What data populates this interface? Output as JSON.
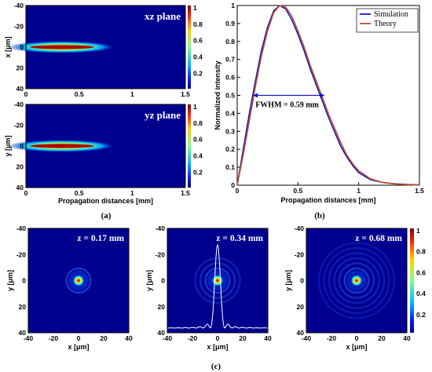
{
  "captions": {
    "a": "(a)",
    "b": "(b)",
    "c": "(c)"
  },
  "colorbar_ticks": [
    "1",
    "0.8",
    "0.6",
    "0.4",
    "0.2"
  ],
  "chart_data": [
    {
      "id": "xz",
      "type": "heatmap",
      "title": "xz plane",
      "xlabel": "",
      "ylabel": "x [μm]",
      "xlim": [
        0,
        1.5
      ],
      "ylim": [
        -40,
        40
      ],
      "xticks": [
        "0",
        "0.5",
        "1",
        "1.5"
      ],
      "yticks": [
        "-40",
        "-20",
        "0",
        "20",
        "40"
      ],
      "beam_peak_z": 0.34,
      "clim": [
        0,
        1
      ]
    },
    {
      "id": "yz",
      "type": "heatmap",
      "title": "yz plane",
      "xlabel": "Propagation distances [mm]",
      "ylabel": "y [μm]",
      "xlim": [
        0,
        1.5
      ],
      "ylim": [
        -40,
        40
      ],
      "xticks": [
        "0",
        "0.5",
        "1",
        "1.5"
      ],
      "yticks": [
        "-40",
        "-20",
        "0",
        "20",
        "40"
      ],
      "beam_peak_z": 0.34,
      "clim": [
        0,
        1
      ]
    },
    {
      "id": "profile",
      "type": "line",
      "xlabel": "Propagation distances [mm]",
      "ylabel": "Normalized intensity",
      "xlim": [
        0,
        1.5
      ],
      "ylim": [
        0,
        1
      ],
      "xticks": [
        "0",
        "0.5",
        "1",
        "1.5"
      ],
      "yticks": [
        "0",
        "0.1",
        "0.2",
        "0.3",
        "0.4",
        "0.5",
        "0.6",
        "0.7",
        "0.8",
        "0.9",
        "1"
      ],
      "annotation": "FWHM = 0.59 mm",
      "fwhm_range": [
        0.13,
        0.72
      ],
      "series": [
        {
          "name": "Simulation",
          "color": "#1515c8",
          "x": [
            0,
            0.05,
            0.1,
            0.15,
            0.2,
            0.25,
            0.3,
            0.35,
            0.4,
            0.45,
            0.5,
            0.55,
            0.6,
            0.65,
            0.7,
            0.75,
            0.8,
            0.85,
            0.9,
            0.95,
            1.0,
            1.1,
            1.2,
            1.3,
            1.4,
            1.5
          ],
          "y": [
            0.0,
            0.2,
            0.4,
            0.58,
            0.75,
            0.88,
            0.97,
            1.0,
            0.98,
            0.92,
            0.84,
            0.75,
            0.65,
            0.56,
            0.47,
            0.38,
            0.3,
            0.22,
            0.16,
            0.11,
            0.07,
            0.03,
            0.015,
            0.008,
            0.004,
            0.002
          ]
        },
        {
          "name": "Theory",
          "color": "#c0502a",
          "x": [
            0,
            0.05,
            0.1,
            0.15,
            0.2,
            0.25,
            0.3,
            0.35,
            0.4,
            0.45,
            0.5,
            0.55,
            0.6,
            0.65,
            0.7,
            0.75,
            0.8,
            0.85,
            0.9,
            0.95,
            1.0,
            1.1,
            1.2,
            1.3,
            1.4,
            1.5
          ],
          "y": [
            0.0,
            0.17,
            0.36,
            0.55,
            0.72,
            0.86,
            0.96,
            1.0,
            0.99,
            0.94,
            0.86,
            0.77,
            0.67,
            0.58,
            0.49,
            0.4,
            0.32,
            0.24,
            0.17,
            0.12,
            0.08,
            0.035,
            0.015,
            0.007,
            0.003,
            0.001
          ]
        }
      ]
    },
    {
      "id": "xs1",
      "type": "heatmap",
      "title": "z = 0.17 mm",
      "xlabel": "x [μm]",
      "ylabel": "y [μm]",
      "xlim": [
        -40,
        40
      ],
      "ylim": [
        -40,
        40
      ],
      "xticks": [
        "-40",
        "-20",
        "0",
        "20",
        "40"
      ],
      "yticks": [
        "-40",
        "-20",
        "0",
        "20",
        "40"
      ],
      "rings": 1
    },
    {
      "id": "xs2",
      "type": "heatmap",
      "title": "z = 0.34 mm",
      "xlabel": "x [μm]",
      "ylabel": "y [μm]",
      "xlim": [
        -40,
        40
      ],
      "ylim": [
        -40,
        40
      ],
      "xticks": [
        "-40",
        "-20",
        "0",
        "20",
        "40"
      ],
      "yticks": [
        "-40",
        "-20",
        "0",
        "20",
        "40"
      ],
      "rings": 3,
      "profile_overlay": true
    },
    {
      "id": "xs3",
      "type": "heatmap",
      "title": "z = 0.68 mm",
      "xlabel": "x [μm]",
      "ylabel": "y [μm]",
      "xlim": [
        -40,
        40
      ],
      "ylim": [
        -40,
        40
      ],
      "xticks": [
        "-40",
        "-20",
        "0",
        "20",
        "40"
      ],
      "yticks": [
        "-40",
        "-20",
        "0",
        "20",
        "40"
      ],
      "rings": 6
    }
  ]
}
